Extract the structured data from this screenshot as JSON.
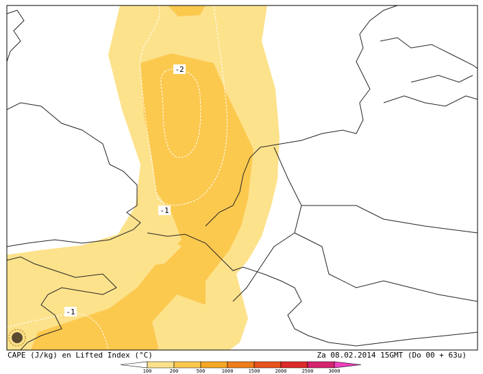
{
  "map": {
    "contour_labels": [
      "-2",
      "-1",
      "-1"
    ],
    "caption_left": "CAPE (J/kg) en Lifted Index (°C)",
    "caption_right": "Za 08.02.2014 15GMT (Do 00 + 63u)"
  },
  "legend": {
    "levels": [
      100,
      200,
      500,
      1000,
      1500,
      2000,
      2500,
      3000
    ],
    "colors": [
      "#ffffff",
      "#fde28c",
      "#fcc94f",
      "#f5a623",
      "#ee7d1c",
      "#e8521d",
      "#dd2a2a",
      "#d4246e",
      "#f040c0"
    ]
  }
}
